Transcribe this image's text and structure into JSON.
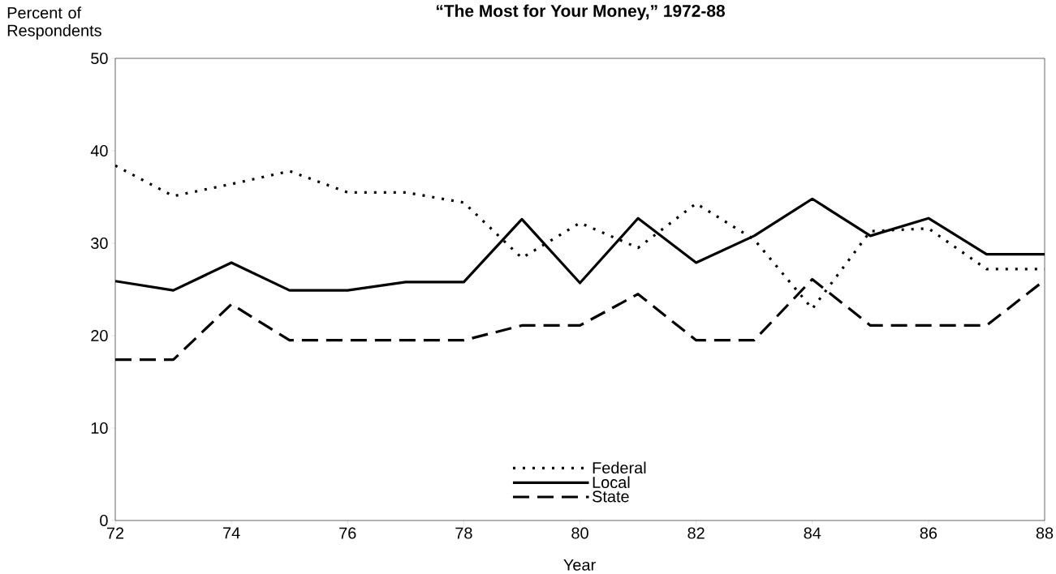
{
  "chart_data": {
    "type": "line",
    "title": "“The Most for Your Money,” 1972-88",
    "xlabel": "Year",
    "ylabel": "Percent of Respondents",
    "x": [
      72,
      73,
      74,
      75,
      76,
      77,
      78,
      79,
      80,
      81,
      82,
      83,
      84,
      85,
      86,
      87,
      88
    ],
    "series": [
      {
        "name": "Federal",
        "color": "#000000",
        "line_style": "dotted",
        "values": [
          38.4,
          35.1,
          36.4,
          37.8,
          35.5,
          35.5,
          34.4,
          28.4,
          32.2,
          29.5,
          34.3,
          30.4,
          22.9,
          31.3,
          31.6,
          27.2,
          27.2
        ]
      },
      {
        "name": "Local",
        "color": "#000000",
        "line_style": "solid",
        "values": [
          25.9,
          24.9,
          27.9,
          24.9,
          24.9,
          25.8,
          25.8,
          32.6,
          25.7,
          32.7,
          27.9,
          30.8,
          34.8,
          30.8,
          32.7,
          28.8,
          28.8
        ]
      },
      {
        "name": "State",
        "color": "#000000",
        "line_style": "dashed",
        "values": [
          17.4,
          17.4,
          23.4,
          19.5,
          19.5,
          19.5,
          19.5,
          21.1,
          21.1,
          24.5,
          19.5,
          19.5,
          26.1,
          21.1,
          21.1,
          21.1,
          26.0
        ]
      }
    ],
    "xlim": [
      72,
      88
    ],
    "ylim": [
      0,
      50
    ],
    "xticks": [
      72,
      74,
      76,
      78,
      80,
      82,
      84,
      86,
      88
    ],
    "yticks": [
      0,
      10,
      20,
      30,
      40,
      50
    ],
    "grid": false,
    "legend": "bottom",
    "marker": "none"
  }
}
